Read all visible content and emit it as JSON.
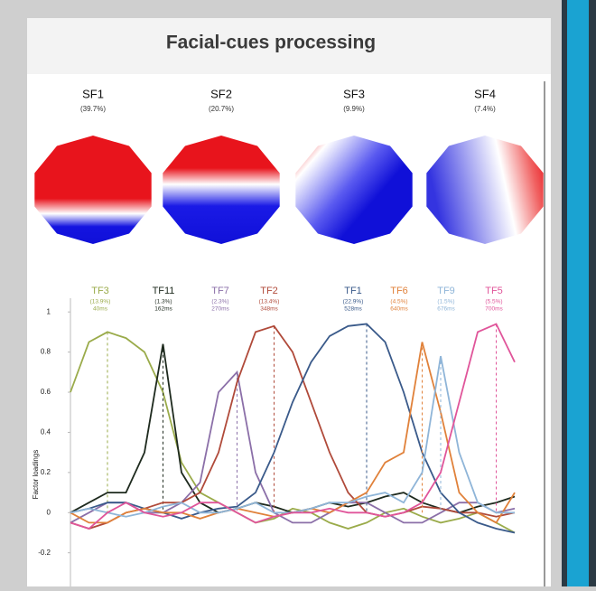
{
  "title": "Facial-cues processing",
  "topomaps": [
    {
      "label": "SF1",
      "variance": "(39.7%)"
    },
    {
      "label": "SF2",
      "variance": "(20.7%)"
    },
    {
      "label": "SF3",
      "variance": "(9.9%)"
    },
    {
      "label": "SF4",
      "variance": "(7.4%)"
    }
  ],
  "chart_data": {
    "type": "line",
    "y_label": "Factor loadings",
    "categories": [
      null,
      null,
      null,
      null,
      null,
      null,
      null,
      null,
      null,
      null,
      null,
      null,
      null,
      null,
      null,
      null,
      null,
      null,
      null,
      null,
      null,
      null,
      null,
      null,
      null
    ],
    "ylim": [
      -0.35,
      1.1
    ],
    "yticks": [
      -0.2,
      0,
      0.2,
      0.4,
      0.6,
      0.8,
      1
    ],
    "series": [
      {
        "name": "TF3",
        "variance": "(13.9%)",
        "latency": "40ms",
        "color": "#9aab4a",
        "values": [
          0.6,
          0.85,
          0.9,
          0.87,
          0.8,
          0.6,
          0.25,
          0.1,
          0.05,
          0.0,
          -0.05,
          -0.03,
          0.02,
          0.0,
          -0.05,
          -0.08,
          -0.05,
          0.0,
          0.02,
          -0.02,
          -0.05,
          -0.03,
          0.0,
          -0.05,
          -0.1
        ]
      },
      {
        "name": "TF11",
        "variance": "(1.3%)",
        "latency": "162ms",
        "color": "#1e2a1e",
        "values": [
          0.0,
          0.05,
          0.1,
          0.1,
          0.3,
          0.84,
          0.2,
          0.05,
          0.0,
          0.02,
          0.05,
          0.03,
          0.0,
          0.02,
          0.05,
          0.03,
          0.05,
          0.08,
          0.1,
          0.05,
          0.02,
          0.0,
          0.03,
          0.05,
          0.08
        ]
      },
      {
        "name": "TF7",
        "variance": "(2.3%)",
        "latency": "270ms",
        "color": "#8b6fa8",
        "values": [
          -0.05,
          0.0,
          0.05,
          0.05,
          0.0,
          0.0,
          0.05,
          0.15,
          0.6,
          0.7,
          0.2,
          0.0,
          -0.05,
          -0.05,
          0.0,
          0.05,
          0.05,
          0.0,
          -0.05,
          -0.05,
          0.0,
          0.05,
          0.05,
          0.0,
          0.02
        ]
      },
      {
        "name": "TF2",
        "variance": "(13.4%)",
        "latency": "348ms",
        "color": "#b04a3a",
        "values": [
          -0.05,
          -0.08,
          -0.05,
          0.0,
          0.02,
          0.05,
          0.05,
          0.1,
          0.3,
          0.65,
          0.9,
          0.93,
          0.8,
          0.55,
          0.3,
          0.1,
          0.0,
          -0.02,
          0.0,
          0.03,
          0.02,
          0.0,
          0.0,
          -0.02,
          0.0
        ]
      },
      {
        "name": "TF1",
        "variance": "(22.9%)",
        "latency": "528ms",
        "color": "#3a5a8a",
        "values": [
          0.0,
          0.02,
          0.05,
          0.05,
          0.02,
          0.0,
          -0.03,
          0.0,
          0.02,
          0.03,
          0.1,
          0.3,
          0.55,
          0.75,
          0.88,
          0.93,
          0.94,
          0.85,
          0.6,
          0.3,
          0.1,
          0.0,
          -0.05,
          -0.08,
          -0.1
        ]
      },
      {
        "name": "TF6",
        "variance": "(4.5%)",
        "latency": "640ms",
        "color": "#e0813a",
        "values": [
          0.0,
          -0.05,
          -0.05,
          0.0,
          0.02,
          0.0,
          0.0,
          -0.03,
          0.0,
          0.02,
          0.0,
          -0.02,
          0.0,
          0.02,
          0.0,
          0.05,
          0.1,
          0.25,
          0.3,
          0.85,
          0.5,
          0.1,
          0.0,
          -0.05,
          0.1
        ]
      },
      {
        "name": "TF9",
        "variance": "(1.5%)",
        "latency": "676ms",
        "color": "#8fb5d8",
        "values": [
          0.0,
          0.02,
          0.0,
          -0.02,
          0.0,
          0.03,
          0.05,
          0.0,
          0.0,
          0.02,
          0.05,
          0.0,
          0.0,
          0.02,
          0.05,
          0.05,
          0.08,
          0.1,
          0.05,
          0.2,
          0.78,
          0.3,
          0.05,
          0.0,
          0.0
        ]
      },
      {
        "name": "TF5",
        "variance": "(5.5%)",
        "latency": "700ms",
        "color": "#e0559a",
        "values": [
          -0.05,
          -0.08,
          0.0,
          0.05,
          0.0,
          -0.02,
          0.0,
          0.05,
          0.05,
          0.0,
          -0.05,
          -0.02,
          0.0,
          0.0,
          0.02,
          0.0,
          0.0,
          -0.02,
          0.0,
          0.05,
          0.2,
          0.55,
          0.9,
          0.94,
          0.75
        ]
      }
    ]
  }
}
